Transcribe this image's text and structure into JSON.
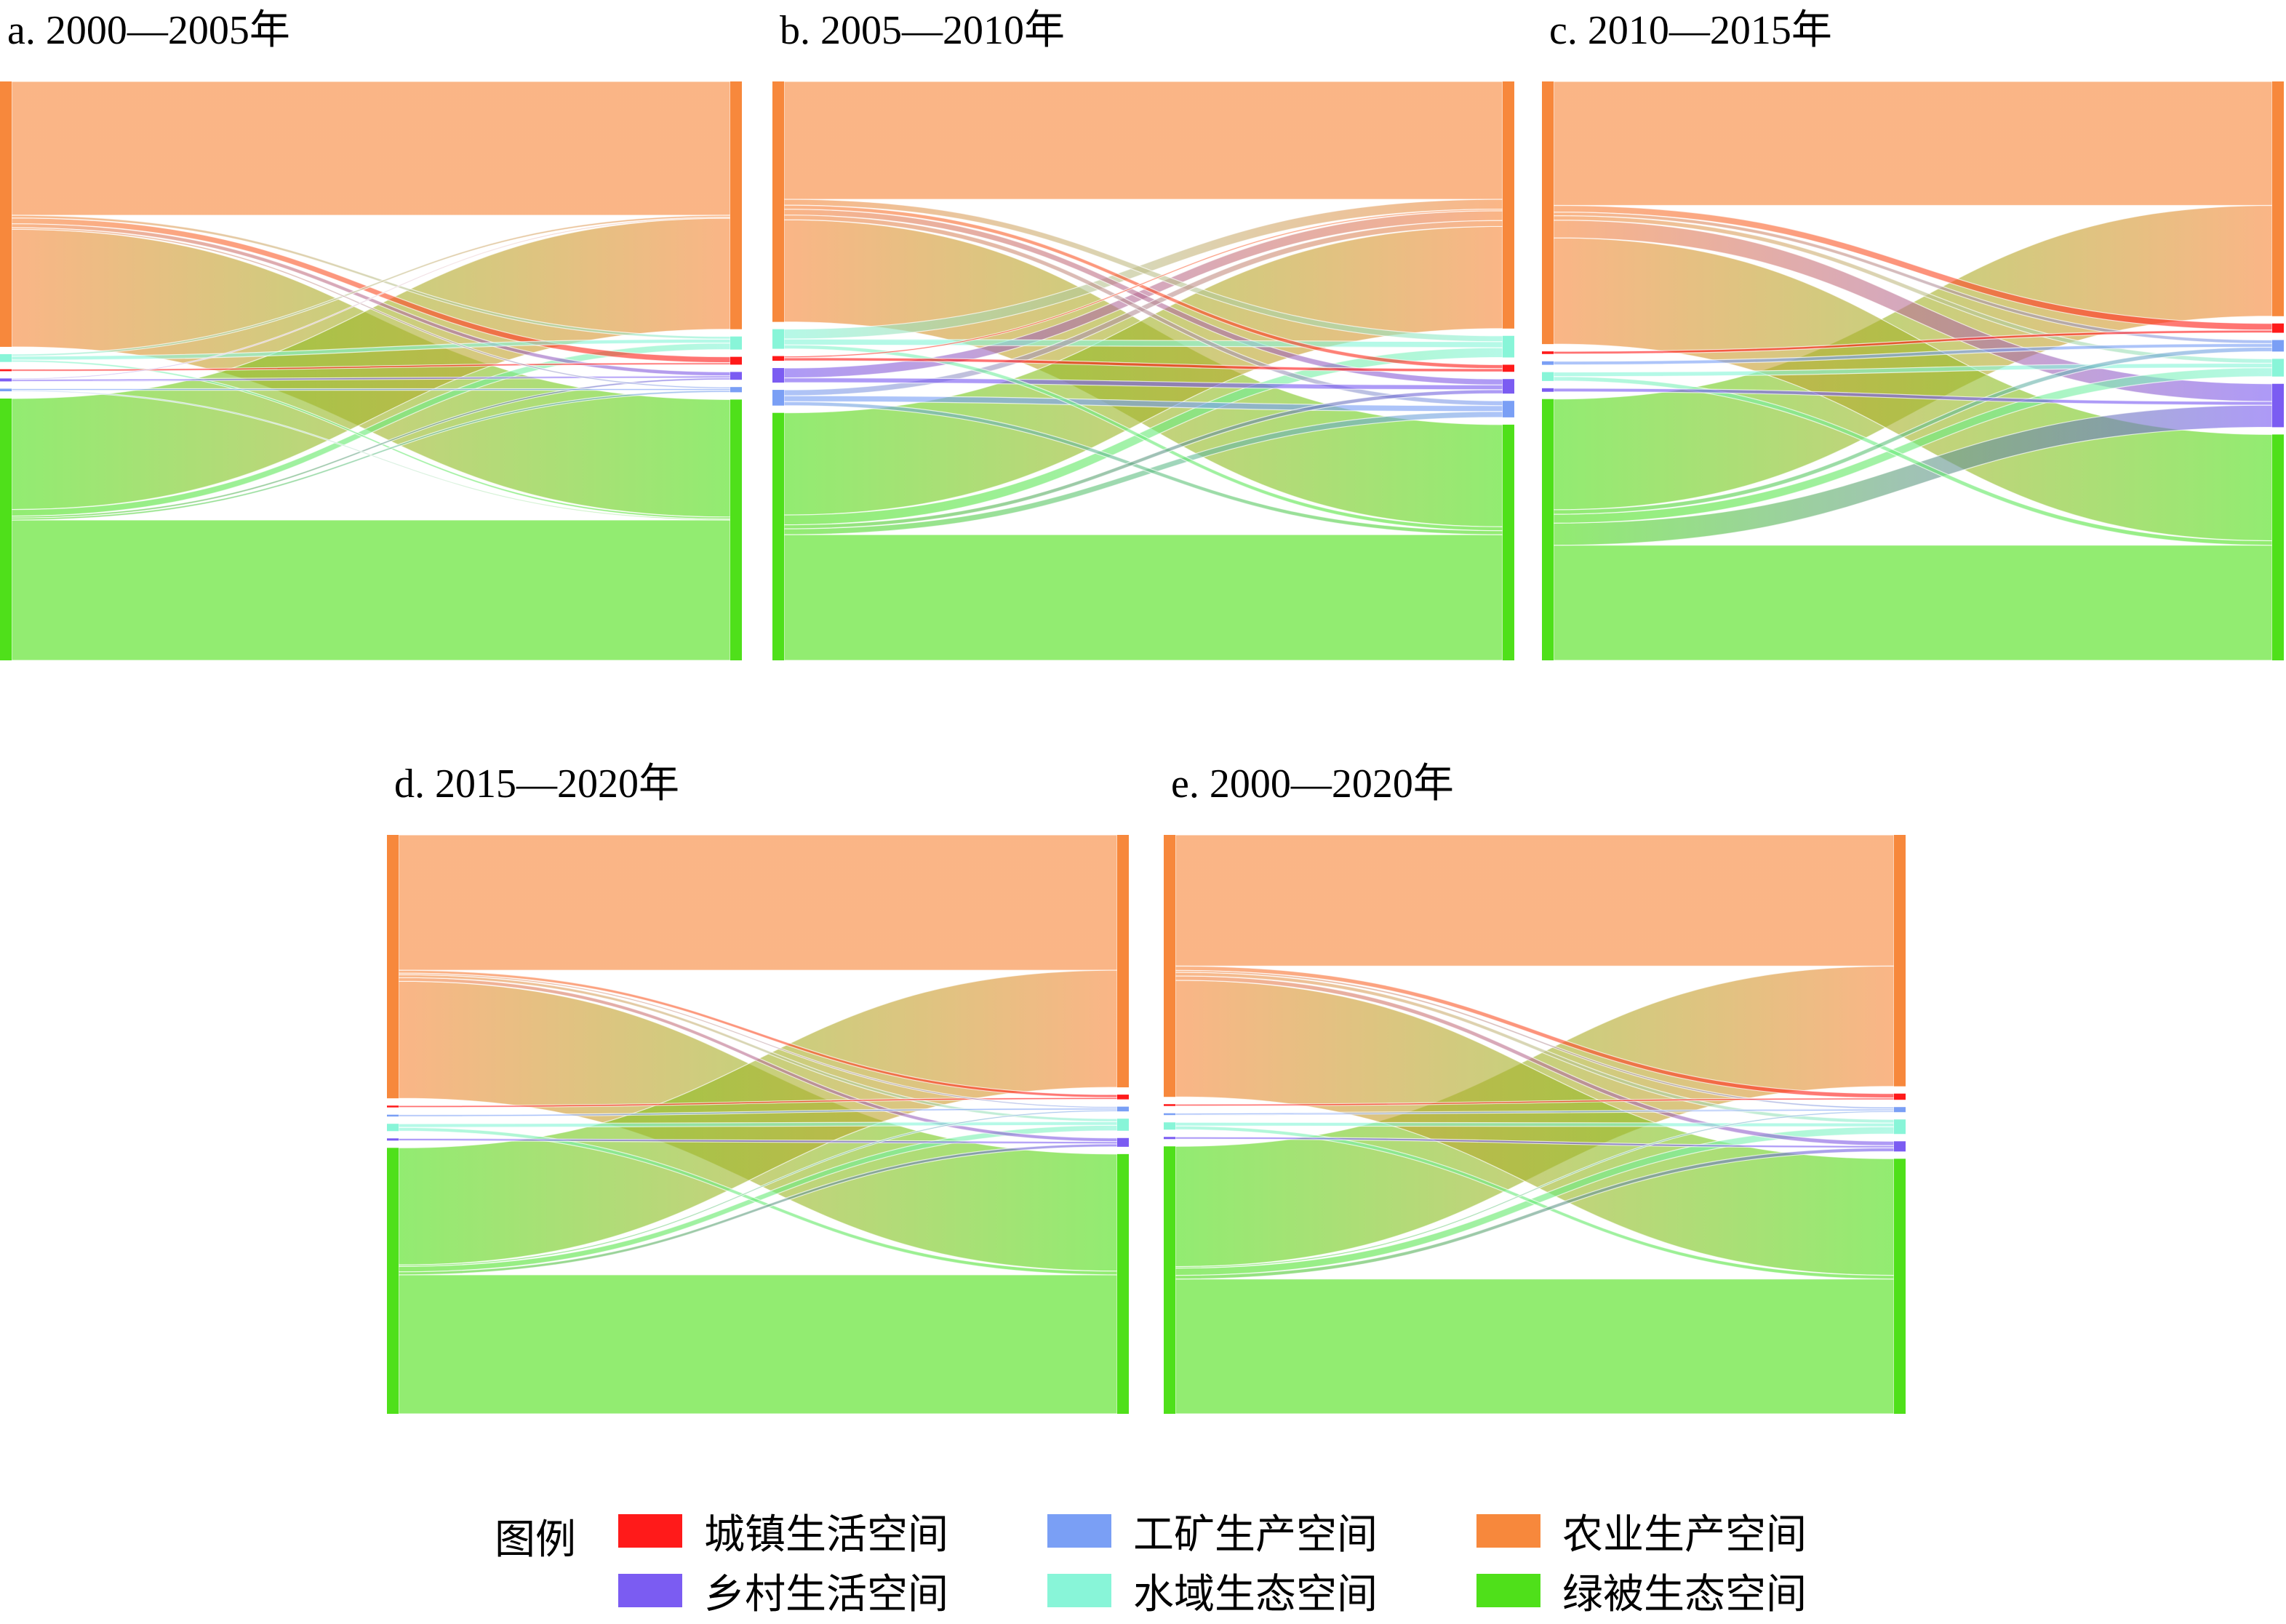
{
  "categories": [
    "城镇生活空间",
    "工矿生产空间",
    "农业生产空间",
    "乡村生活空间",
    "水域生态空间",
    "绿被生态空间"
  ],
  "colors": {
    "城镇生活空间": "#ff1a1a",
    "工矿生产空间": "#7a9ff5",
    "农业生产空间": "#f7883c",
    "乡村生活空间": "#7b5cf2",
    "水域生态空间": "#88f5d8",
    "绿被生态空间": "#4fe01a"
  },
  "legend": {
    "title": "图例",
    "items": [
      {
        "label": "城镇生活空间",
        "color": "#ff1a1a"
      },
      {
        "label": "工矿生产空间",
        "color": "#7a9ff5"
      },
      {
        "label": "农业生产空间",
        "color": "#f7883c"
      },
      {
        "label": "乡村生活空间",
        "color": "#7b5cf2"
      },
      {
        "label": "水域生态空间",
        "color": "#88f5d8"
      },
      {
        "label": "绿被生态空间",
        "color": "#4fe01a"
      }
    ]
  },
  "chart_data": [
    {
      "type": "sankey",
      "title": "a. 2000—2005年",
      "node_order": [
        "农业生产空间",
        "水域生态空间",
        "城镇生活空间",
        "乡村生活空间",
        "工矿生产空间",
        "绿被生态空间"
      ],
      "flows": [
        {
          "from": "农业生产空间",
          "to": "农业生产空间",
          "value": 41
        },
        {
          "from": "农业生产空间",
          "to": "绿被生态空间",
          "value": 36
        },
        {
          "from": "农业生产空间",
          "to": "城镇生活空间",
          "value": 1.8
        },
        {
          "from": "农业生产空间",
          "to": "乡村生活空间",
          "value": 1.2
        },
        {
          "from": "农业生产空间",
          "to": "水域生态空间",
          "value": 0.8
        },
        {
          "from": "农业生产空间",
          "to": "工矿生产空间",
          "value": 0.5
        },
        {
          "from": "水域生态空间",
          "to": "水域生态空间",
          "value": 1.2
        },
        {
          "from": "水域生态空间",
          "to": "农业生产空间",
          "value": 0.6
        },
        {
          "from": "水域生态空间",
          "to": "绿被生态空间",
          "value": 0.6
        },
        {
          "from": "城镇生活空间",
          "to": "城镇生活空间",
          "value": 0.6
        },
        {
          "from": "乡村生活空间",
          "to": "乡村生活空间",
          "value": 0.6
        },
        {
          "from": "乡村生活空间",
          "to": "农业生产空间",
          "value": 0.3
        },
        {
          "from": "工矿生产空间",
          "to": "工矿生产空间",
          "value": 0.5
        },
        {
          "from": "工矿生产空间",
          "to": "绿被生态空间",
          "value": 0.3
        },
        {
          "from": "绿被生态空间",
          "to": "农业生产空间",
          "value": 34
        },
        {
          "from": "绿被生态空间",
          "to": "绿被生态空间",
          "value": 43
        },
        {
          "from": "绿被生态空间",
          "to": "水域生态空间",
          "value": 2.0
        },
        {
          "from": "绿被生态空间",
          "to": "乡村生活空间",
          "value": 0.6
        },
        {
          "from": "绿被生态空间",
          "to": "工矿生产空间",
          "value": 0.6
        }
      ]
    },
    {
      "type": "sankey",
      "title": "b. 2005—2010年",
      "node_order": [
        "农业生产空间",
        "水域生态空间",
        "城镇生活空间",
        "乡村生活空间",
        "工矿生产空间",
        "绿被生态空间"
      ],
      "flows": [
        {
          "from": "农业生产空间",
          "to": "农业生产空间",
          "value": 30
        },
        {
          "from": "农业生产空间",
          "to": "绿被生态空间",
          "value": 26
        },
        {
          "from": "农业生产空间",
          "to": "城镇生活空间",
          "value": 1.0
        },
        {
          "from": "农业生产空间",
          "to": "乡村生活空间",
          "value": 1.5
        },
        {
          "from": "农业生产空间",
          "to": "水域生态空间",
          "value": 1.5
        },
        {
          "from": "农业生产空间",
          "to": "工矿生产空间",
          "value": 1.2
        },
        {
          "from": "水域生态空间",
          "to": "农业生产空间",
          "value": 2.5
        },
        {
          "from": "水域生态空间",
          "to": "水域生态空间",
          "value": 1.5
        },
        {
          "from": "水域生态空间",
          "to": "绿被生态空间",
          "value": 1.0
        },
        {
          "from": "城镇生活空间",
          "to": "城镇生活空间",
          "value": 0.8
        },
        {
          "from": "城镇生活空间",
          "to": "农业生产空间",
          "value": 0.4
        },
        {
          "from": "乡村生活空间",
          "to": "农业生产空间",
          "value": 2.5
        },
        {
          "from": "乡村生活空间",
          "to": "乡村生活空间",
          "value": 1.2
        },
        {
          "from": "工矿生产空间",
          "to": "农业生产空间",
          "value": 1.5
        },
        {
          "from": "工矿生产空间",
          "to": "工矿生产空间",
          "value": 1.5
        },
        {
          "from": "工矿生产空间",
          "to": "绿被生态空间",
          "value": 1.0
        },
        {
          "from": "绿被生态空间",
          "to": "农业生产空间",
          "value": 26
        },
        {
          "from": "绿被生态空间",
          "to": "绿被生态空间",
          "value": 32
        },
        {
          "from": "绿被生态空间",
          "to": "水域生态空间",
          "value": 2.5
        },
        {
          "from": "绿被生态空间",
          "to": "乡村生活空间",
          "value": 1.0
        },
        {
          "from": "绿被生态空间",
          "to": "工矿生产空间",
          "value": 1.5
        }
      ]
    },
    {
      "type": "sankey",
      "title": "c. 2010—2015年",
      "node_order": [
        "农业生产空间",
        "城镇生活空间",
        "工矿生产空间",
        "水域生态空间",
        "乡村生活空间",
        "绿被生态空间"
      ],
      "flows": [
        {
          "from": "农业生产空间",
          "to": "农业生产空间",
          "value": 28
        },
        {
          "from": "农业生产空间",
          "to": "绿被生态空间",
          "value": 24
        },
        {
          "from": "农业生产空间",
          "to": "城镇生活空间",
          "value": 1.5
        },
        {
          "from": "农业生产空间",
          "to": "乡村生活空间",
          "value": 4.0
        },
        {
          "from": "农业生产空间",
          "to": "水域生态空间",
          "value": 1.0
        },
        {
          "from": "农业生产空间",
          "to": "工矿生产空间",
          "value": 0.8
        },
        {
          "from": "水域生态空间",
          "to": "水域生态空间",
          "value": 1.0
        },
        {
          "from": "水域生态空间",
          "to": "绿被生态空间",
          "value": 1.0
        },
        {
          "from": "城镇生活空间",
          "to": "城镇生活空间",
          "value": 0.6
        },
        {
          "from": "乡村生活空间",
          "to": "乡村生活空间",
          "value": 0.8
        },
        {
          "from": "工矿生产空间",
          "to": "工矿生产空间",
          "value": 0.8
        },
        {
          "from": "绿被生态空间",
          "to": "农业生产空间",
          "value": 25
        },
        {
          "from": "绿被生态空间",
          "to": "绿被生态空间",
          "value": 26
        },
        {
          "from": "绿被生态空间",
          "to": "乡村生活空间",
          "value": 5.0
        },
        {
          "from": "绿被生态空间",
          "to": "水域生态空间",
          "value": 2.0
        },
        {
          "from": "绿被生态空间",
          "to": "工矿生产空间",
          "value": 1.0
        }
      ]
    },
    {
      "type": "sankey",
      "title": "d. 2015—2020年",
      "node_order": [
        "农业生产空间",
        "城镇生活空间",
        "工矿生产空间",
        "水域生态空间",
        "乡村生活空间",
        "绿被生态空间"
      ],
      "flows": [
        {
          "from": "农业生产空间",
          "to": "农业生产空间",
          "value": 37
        },
        {
          "from": "农业生产空间",
          "to": "绿被生态空间",
          "value": 32
        },
        {
          "from": "农业生产空间",
          "to": "城镇生活空间",
          "value": 0.8
        },
        {
          "from": "农业生产空间",
          "to": "乡村生活空间",
          "value": 1.0
        },
        {
          "from": "农业生产空间",
          "to": "水域生态空间",
          "value": 0.8
        },
        {
          "from": "农业生产空间",
          "to": "工矿生产空间",
          "value": 0.4
        },
        {
          "from": "水域生态空间",
          "to": "水域生态空间",
          "value": 1.0
        },
        {
          "from": "水域生态空间",
          "to": "绿被生态空间",
          "value": 1.0
        },
        {
          "from": "城镇生活空间",
          "to": "城镇生活空间",
          "value": 0.5
        },
        {
          "from": "乡村生活空间",
          "to": "乡村生活空间",
          "value": 0.6
        },
        {
          "from": "工矿生产空间",
          "to": "工矿生产空间",
          "value": 0.5
        },
        {
          "from": "绿被生态空间",
          "to": "农业生产空间",
          "value": 32
        },
        {
          "from": "绿被生态空间",
          "to": "绿被生态空间",
          "value": 38
        },
        {
          "from": "绿被生态空间",
          "to": "水域生态空间",
          "value": 1.5
        },
        {
          "from": "绿被生态空间",
          "to": "乡村生活空间",
          "value": 0.8
        },
        {
          "from": "绿被生态空间",
          "to": "工矿生产空间",
          "value": 0.4
        }
      ]
    },
    {
      "type": "sankey",
      "title": "e. 2000—2020年",
      "node_order": [
        "农业生产空间",
        "城镇生活空间",
        "工矿生产空间",
        "水域生态空间",
        "乡村生活空间",
        "绿被生态空间"
      ],
      "flows": [
        {
          "from": "农业生产空间",
          "to": "农业生产空间",
          "value": 36
        },
        {
          "from": "农业生产空间",
          "to": "绿被生态空间",
          "value": 32
        },
        {
          "from": "农业生产空间",
          "to": "城镇生活空间",
          "value": 1.2
        },
        {
          "from": "农业生产空间",
          "to": "乡村生活空间",
          "value": 1.2
        },
        {
          "from": "农业生产空间",
          "to": "水域生态空间",
          "value": 1.0
        },
        {
          "from": "农业生产空间",
          "to": "工矿生产空间",
          "value": 0.5
        },
        {
          "from": "水域生态空间",
          "to": "水域生态空间",
          "value": 1.0
        },
        {
          "from": "水域生态空间",
          "to": "绿被生态空间",
          "value": 1.0
        },
        {
          "from": "城镇生活空间",
          "to": "城镇生活空间",
          "value": 0.5
        },
        {
          "from": "乡村生活空间",
          "to": "乡村生活空间",
          "value": 0.6
        },
        {
          "from": "工矿生产空间",
          "to": "工矿生产空间",
          "value": 0.5
        },
        {
          "from": "绿被生态空间",
          "to": "农业生产空间",
          "value": 33
        },
        {
          "from": "绿被生态空间",
          "to": "绿被生态空间",
          "value": 37
        },
        {
          "from": "绿被生态空间",
          "to": "水域生态空间",
          "value": 2.0
        },
        {
          "from": "绿被生态空间",
          "to": "乡村生活空间",
          "value": 1.0
        },
        {
          "from": "绿被生态空间",
          "to": "工矿生产空间",
          "value": 0.4
        }
      ]
    }
  ]
}
